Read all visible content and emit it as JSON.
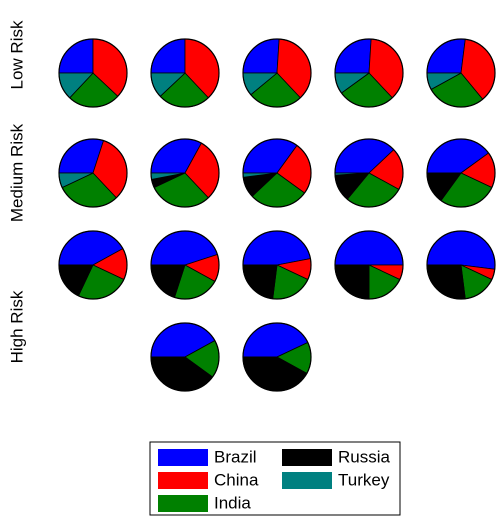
{
  "chart_data": {
    "type": "pie",
    "series": [
      {
        "name": "Brazil",
        "color": "#0000ff"
      },
      {
        "name": "China",
        "color": "#ff0000"
      },
      {
        "name": "India",
        "color": "#008000"
      },
      {
        "name": "Russia",
        "color": "#000000"
      },
      {
        "name": "Turkey",
        "color": "#008080"
      }
    ],
    "groups": [
      {
        "label": "Low Risk",
        "pies": [
          [
            25,
            37,
            25,
            0,
            13
          ],
          [
            25,
            38,
            25,
            0,
            12
          ],
          [
            26,
            37,
            26,
            0,
            11
          ],
          [
            26,
            37,
            27,
            0,
            10
          ],
          [
            27,
            37,
            28,
            0,
            8
          ]
        ]
      },
      {
        "label": "Medium Risk",
        "pies": [
          [
            30,
            33,
            30,
            0,
            7
          ],
          [
            33,
            30,
            30,
            4,
            3
          ],
          [
            35,
            25,
            28,
            10,
            2
          ],
          [
            38,
            20,
            28,
            13,
            1
          ],
          [
            40,
            17,
            28,
            15,
            0
          ]
        ]
      },
      {
        "label": "High Risk",
        "pies": [
          [
            42,
            15,
            25,
            18,
            0
          ],
          [
            45,
            13,
            22,
            20,
            0
          ],
          [
            47,
            10,
            20,
            23,
            0
          ],
          [
            50,
            7,
            18,
            25,
            0
          ],
          [
            52,
            5,
            16,
            27,
            0
          ],
          [
            42,
            0,
            18,
            40,
            0
          ],
          [
            43,
            0,
            15,
            42,
            0
          ]
        ]
      }
    ]
  }
}
